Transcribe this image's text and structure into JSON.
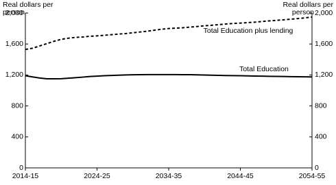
{
  "chart_data": {
    "type": "line",
    "y_label_lines": [
      "Real dollars per",
      "person"
    ],
    "categories": [
      "2014-15",
      null,
      null,
      null,
      null,
      null,
      null,
      null,
      null,
      null,
      "2024-25",
      null,
      null,
      null,
      null,
      null,
      null,
      null,
      null,
      null,
      "2034-35",
      null,
      null,
      null,
      null,
      null,
      null,
      null,
      null,
      null,
      "2044-45",
      null,
      null,
      null,
      null,
      null,
      null,
      null,
      null,
      null,
      "2054-55"
    ],
    "series": [
      {
        "name": "Total Education plus lending",
        "color": "#000000",
        "dashed": true,
        "values": [
          1530,
          1545,
          1575,
          1605,
          1635,
          1660,
          1675,
          1685,
          1690,
          1700,
          1705,
          1712,
          1720,
          1728,
          1735,
          1745,
          1755,
          1765,
          1778,
          1790,
          1800,
          1805,
          1810,
          1818,
          1826,
          1835,
          1842,
          1850,
          1858,
          1865,
          1870,
          1876,
          1882,
          1890,
          1898,
          1905,
          1912,
          1920,
          1928,
          1937,
          1948
        ]
      },
      {
        "name": "Total Education",
        "color": "#000000",
        "dashed": false,
        "values": [
          1190,
          1175,
          1160,
          1150,
          1150,
          1152,
          1158,
          1165,
          1172,
          1180,
          1185,
          1190,
          1194,
          1197,
          1200,
          1202,
          1204,
          1205,
          1205,
          1205,
          1205,
          1205,
          1204,
          1203,
          1201,
          1199,
          1197,
          1195,
          1193,
          1191,
          1190,
          1188,
          1186,
          1185,
          1183,
          1181,
          1180,
          1178,
          1177,
          1176,
          1175
        ]
      }
    ],
    "ylim": [
      0,
      2000
    ],
    "yticks": [
      0,
      400,
      800,
      {
        "value": 1200,
        "label": "1,200"
      },
      {
        "value": 1600,
        "label": "1,600"
      },
      {
        "value": 2000,
        "label": "2,000"
      }
    ],
    "grid": false
  }
}
